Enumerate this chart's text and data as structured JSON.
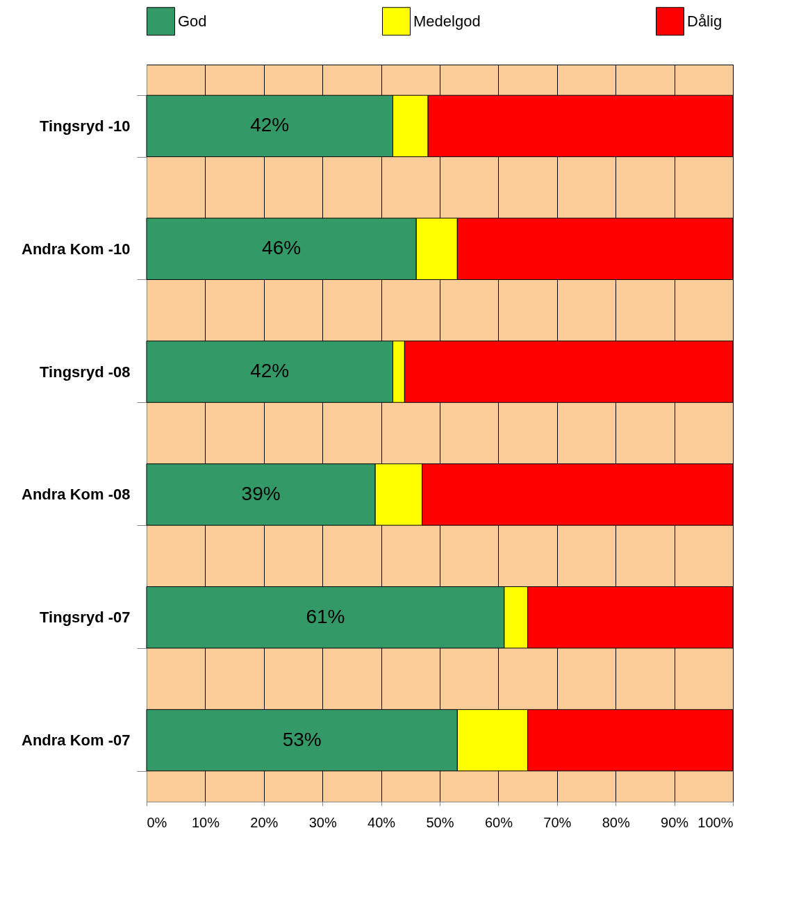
{
  "chart_data": {
    "type": "bar",
    "orientation": "horizontal",
    "stacked": true,
    "categories": [
      "Tingsryd -10",
      "Andra Kom -10",
      "Tingsryd -08",
      "Andra Kom -08",
      "Tingsryd -07",
      "Andra Kom -07"
    ],
    "series": [
      {
        "name": "God",
        "color": "#339966",
        "values": [
          42,
          46,
          42,
          39,
          61,
          53
        ],
        "value_labels": [
          "42%",
          "46%",
          "42%",
          "39%",
          "61%",
          "53%"
        ]
      },
      {
        "name": "Medelgod",
        "color": "#ffff00",
        "values": [
          6,
          7,
          2,
          8,
          4,
          12
        ]
      },
      {
        "name": "Dålig",
        "color": "#ff0000",
        "values": [
          52,
          47,
          56,
          53,
          35,
          35
        ]
      }
    ],
    "xlim": [
      0,
      100
    ],
    "xticks": [
      {
        "value": 0,
        "label": "0%"
      },
      {
        "value": 10,
        "label": "10%"
      },
      {
        "value": 20,
        "label": "20%"
      },
      {
        "value": 30,
        "label": "30%"
      },
      {
        "value": 40,
        "label": "40%"
      },
      {
        "value": 50,
        "label": "50%"
      },
      {
        "value": 60,
        "label": "60%"
      },
      {
        "value": 70,
        "label": "70%"
      },
      {
        "value": 80,
        "label": "80%"
      },
      {
        "value": 90,
        "label": "90%"
      },
      {
        "value": 100,
        "label": "100%"
      }
    ],
    "grid": "x",
    "legend": "top"
  }
}
